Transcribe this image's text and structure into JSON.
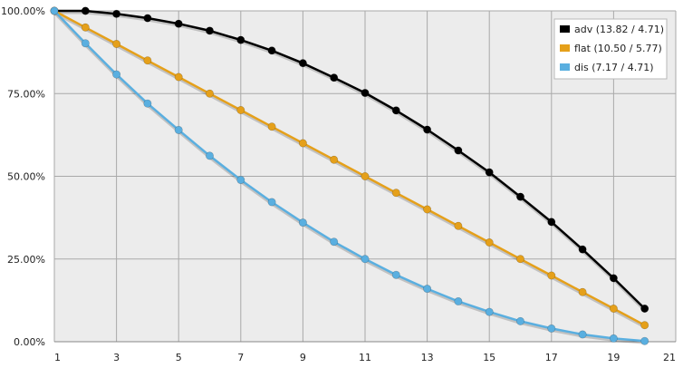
{
  "chart_data": {
    "type": "line",
    "title": "",
    "xlabel": "",
    "ylabel": "",
    "xlim": [
      1,
      21
    ],
    "ylim": [
      0,
      100
    ],
    "x_ticks": [
      "1",
      "3",
      "5",
      "7",
      "9",
      "11",
      "13",
      "15",
      "17",
      "19",
      "21"
    ],
    "y_ticks": [
      "0.00%",
      "25.00%",
      "50.00%",
      "75.00%",
      "100.00%"
    ],
    "grid": true,
    "legend_position": "top-right",
    "x": [
      1,
      2,
      3,
      4,
      5,
      6,
      7,
      8,
      9,
      10,
      11,
      12,
      13,
      14,
      15,
      16,
      17,
      18,
      19,
      20
    ],
    "series": [
      {
        "name": "adv (13.82 / 4.71)",
        "color": "#000000",
        "values": [
          100,
          100,
          99.1,
          97.8,
          96.1,
          94,
          91.2,
          88,
          84.2,
          79.8,
          75.2,
          69.9,
          64.1,
          57.8,
          51.2,
          43.8,
          36.2,
          27.9,
          19.2,
          10
        ]
      },
      {
        "name": "flat (10.50 / 5.77)",
        "color": "#e5a01a",
        "values": [
          100,
          95,
          90,
          85,
          80,
          75,
          70,
          65,
          60,
          55,
          50,
          45,
          40,
          35,
          30,
          25,
          20,
          15,
          10,
          5
        ]
      },
      {
        "name": "dis (7.17 / 4.71)",
        "color": "#5aafe0",
        "values": [
          100,
          90.2,
          80.8,
          72,
          64,
          56.2,
          48.9,
          42.2,
          36,
          30.2,
          25,
          20.2,
          16,
          12.2,
          9,
          6.2,
          4,
          2.2,
          1,
          0.2
        ]
      }
    ]
  }
}
